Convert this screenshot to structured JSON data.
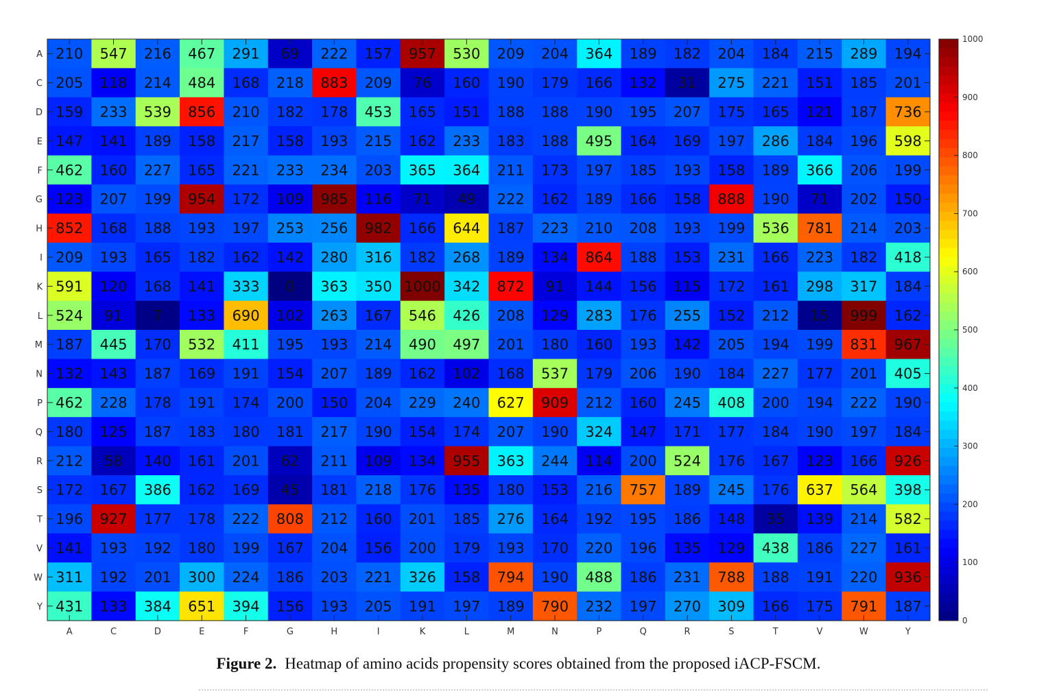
{
  "chart_data": {
    "type": "heatmap",
    "row_labels": [
      "A",
      "C",
      "D",
      "E",
      "F",
      "G",
      "H",
      "I",
      "K",
      "L",
      "M",
      "N",
      "P",
      "Q",
      "R",
      "S",
      "T",
      "V",
      "W",
      "Y"
    ],
    "col_labels": [
      "A",
      "C",
      "D",
      "E",
      "F",
      "G",
      "H",
      "I",
      "K",
      "L",
      "M",
      "N",
      "P",
      "Q",
      "R",
      "S",
      "T",
      "V",
      "W",
      "Y"
    ],
    "values": [
      [
        210,
        547,
        216,
        467,
        291,
        69,
        222,
        157,
        957,
        530,
        209,
        204,
        364,
        189,
        182,
        204,
        184,
        215,
        289,
        194
      ],
      [
        205,
        118,
        214,
        484,
        168,
        218,
        883,
        209,
        76,
        160,
        190,
        179,
        166,
        132,
        31,
        275,
        221,
        151,
        185,
        201
      ],
      [
        159,
        233,
        539,
        856,
        210,
        182,
        178,
        453,
        165,
        151,
        188,
        188,
        190,
        195,
        207,
        175,
        165,
        121,
        187,
        736
      ],
      [
        147,
        141,
        189,
        158,
        217,
        158,
        193,
        215,
        162,
        233,
        183,
        188,
        495,
        164,
        169,
        197,
        286,
        184,
        196,
        598
      ],
      [
        462,
        160,
        227,
        165,
        221,
        233,
        234,
        203,
        365,
        364,
        211,
        173,
        197,
        185,
        193,
        158,
        189,
        366,
        206,
        199
      ],
      [
        123,
        207,
        199,
        954,
        172,
        109,
        985,
        116,
        71,
        49,
        222,
        162,
        189,
        166,
        158,
        888,
        190,
        71,
        202,
        150
      ],
      [
        852,
        168,
        188,
        193,
        197,
        253,
        256,
        982,
        166,
        644,
        187,
        223,
        210,
        208,
        193,
        199,
        536,
        781,
        214,
        203
      ],
      [
        209,
        193,
        165,
        182,
        162,
        142,
        280,
        316,
        182,
        268,
        189,
        134,
        864,
        188,
        153,
        231,
        166,
        223,
        182,
        418
      ],
      [
        591,
        120,
        168,
        141,
        333,
        0,
        363,
        350,
        1000,
        342,
        872,
        91,
        144,
        156,
        115,
        172,
        161,
        298,
        317,
        184
      ],
      [
        524,
        91,
        7,
        133,
        690,
        102,
        263,
        167,
        546,
        426,
        208,
        129,
        283,
        176,
        255,
        152,
        212,
        15,
        999,
        162
      ],
      [
        187,
        445,
        170,
        532,
        411,
        195,
        193,
        214,
        490,
        497,
        201,
        180,
        160,
        193,
        142,
        205,
        194,
        199,
        831,
        967
      ],
      [
        132,
        143,
        187,
        169,
        191,
        154,
        207,
        189,
        162,
        102,
        168,
        537,
        179,
        206,
        190,
        184,
        227,
        177,
        201,
        405
      ],
      [
        462,
        228,
        178,
        191,
        174,
        200,
        150,
        204,
        229,
        240,
        627,
        909,
        212,
        160,
        245,
        408,
        200,
        194,
        222,
        190
      ],
      [
        180,
        125,
        187,
        183,
        180,
        181,
        217,
        190,
        154,
        174,
        207,
        190,
        324,
        147,
        171,
        177,
        184,
        190,
        197,
        184
      ],
      [
        212,
        58,
        140,
        161,
        201,
        62,
        211,
        109,
        134,
        955,
        363,
        244,
        114,
        200,
        524,
        176,
        167,
        123,
        166,
        926
      ],
      [
        172,
        167,
        386,
        162,
        169,
        45,
        181,
        218,
        176,
        135,
        180,
        153,
        216,
        757,
        189,
        245,
        176,
        637,
        564,
        398
      ],
      [
        196,
        927,
        177,
        178,
        222,
        808,
        212,
        160,
        201,
        185,
        276,
        164,
        192,
        195,
        186,
        148,
        35,
        139,
        214,
        582
      ],
      [
        141,
        193,
        192,
        180,
        199,
        167,
        204,
        156,
        200,
        179,
        193,
        170,
        220,
        196,
        135,
        129,
        438,
        186,
        227,
        161
      ],
      [
        311,
        192,
        201,
        300,
        224,
        186,
        203,
        221,
        326,
        158,
        794,
        190,
        488,
        186,
        231,
        788,
        188,
        191,
        220,
        936
      ],
      [
        431,
        133,
        384,
        651,
        394,
        156,
        193,
        205,
        191,
        197,
        189,
        790,
        232,
        197,
        270,
        309,
        166,
        175,
        791,
        187
      ]
    ],
    "colorbar": {
      "min": 0,
      "max": 1000,
      "ticks": [
        0,
        100,
        200,
        300,
        400,
        500,
        600,
        700,
        800,
        900,
        1000
      ],
      "colormap": "jet"
    }
  },
  "caption": {
    "label": "Figure 2.",
    "text": "Heatmap of amino acids propensity scores obtained from the proposed iACP-FSCM."
  }
}
